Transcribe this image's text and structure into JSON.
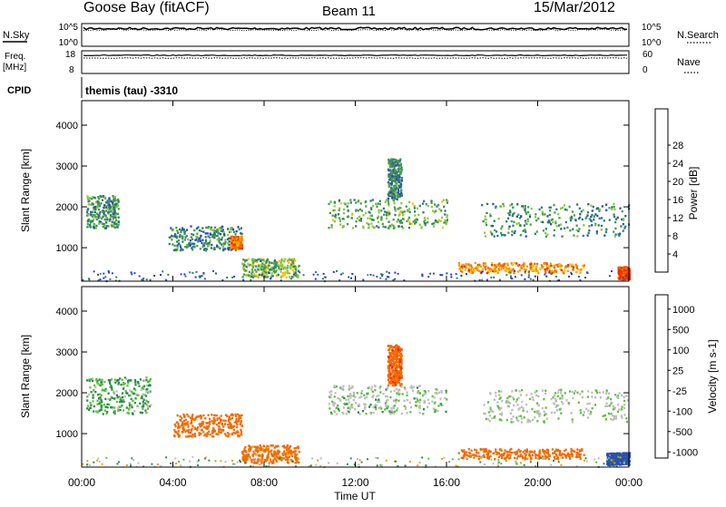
{
  "header": {
    "station": "Goose Bay (fitACF)",
    "beam": "Beam 11",
    "date": "15/Mar/2012"
  },
  "noise_panel": {
    "left_label": "N.Sky",
    "right_label": "N.Search",
    "tick_top": "10^5",
    "tick_bottom": "10^0",
    "sky_level": 0.78,
    "search_level": 0.72
  },
  "freq_panel": {
    "left_label_1": "Freq.",
    "left_label_2": "[MHz]",
    "right_label": "Nave",
    "left_ticks": [
      "18",
      "8"
    ],
    "right_ticks": [
      "60",
      "0"
    ],
    "freq_level": 0.8,
    "nave_level": 0.68
  },
  "cpid": {
    "label": "CPID",
    "text": "themis (tau) -3310"
  },
  "chart_data": [
    {
      "type": "heatmap",
      "name": "power",
      "ylabel": "Slant Range [km]",
      "xlabel": "Time UT",
      "x_range": [
        0,
        24
      ],
      "ylim": [
        180,
        4600
      ],
      "yticks": [
        1000,
        2000,
        3000,
        4000
      ],
      "xtick_labels": [
        "00:00",
        "04:00",
        "08:00",
        "12:00",
        "16:00",
        "20:00",
        "00:00"
      ],
      "colorbar": {
        "label": "Power [dB]",
        "ticks": [
          "4",
          "8",
          "12",
          "16",
          "20",
          "24",
          "28"
        ],
        "colors": [
          "#1530ff",
          "#2a4fb0",
          "#2e7d6e",
          "#4a9a50",
          "#8ac840",
          "#f5c400",
          "#f59a00",
          "#f26b00",
          "#ee2a00"
        ]
      },
      "regions": [
        {
          "t0": 0.2,
          "t1": 1.6,
          "r0": 1500,
          "r1": 2300,
          "v": 0.35
        },
        {
          "t0": 3.8,
          "t1": 7.0,
          "r0": 950,
          "r1": 1550,
          "v": 0.3
        },
        {
          "t0": 6.5,
          "t1": 7.0,
          "r0": 1000,
          "r1": 1300,
          "v": 0.8
        },
        {
          "t0": 7.0,
          "t1": 9.5,
          "r0": 300,
          "r1": 750,
          "v": 0.45
        },
        {
          "t0": 10.8,
          "t1": 16.0,
          "r0": 1500,
          "r1": 2200,
          "v": 0.4
        },
        {
          "t0": 13.4,
          "t1": 14.0,
          "r0": 2200,
          "r1": 3200,
          "v": 0.3
        },
        {
          "t0": 16.5,
          "t1": 22.0,
          "r0": 400,
          "r1": 650,
          "v": 0.75
        },
        {
          "t0": 17.5,
          "t1": 24.0,
          "r0": 1300,
          "r1": 2100,
          "v": 0.35
        },
        {
          "t0": 23.5,
          "t1": 24.0,
          "r0": 250,
          "r1": 550,
          "v": 0.95
        }
      ]
    },
    {
      "type": "heatmap",
      "name": "velocity",
      "ylabel": "Slant Range [km]",
      "xlabel": "Time UT",
      "x_range": [
        0,
        24
      ],
      "ylim": [
        180,
        4600
      ],
      "yticks": [
        1000,
        2000,
        3000,
        4000
      ],
      "xtick_labels": [
        "00:00",
        "04:00",
        "08:00",
        "12:00",
        "16:00",
        "20:00",
        "00:00"
      ],
      "colorbar": {
        "label": "Velocity [m s-1]",
        "ticks": [
          "1000",
          "500",
          "100",
          "25",
          "-25",
          "-100",
          "-500",
          "-1000"
        ],
        "colors": [
          "#1530c8",
          "#2a4fb0",
          "#2e8a4a",
          "#5fc040",
          "#bdbdbd",
          "#f59a00",
          "#f26b00",
          "#ee2a00"
        ]
      },
      "regions": [
        {
          "t0": 0.2,
          "t1": 3.0,
          "r0": 1500,
          "r1": 2400,
          "v": 25
        },
        {
          "t0": 4.0,
          "t1": 7.0,
          "r0": 950,
          "r1": 1500,
          "v": -200
        },
        {
          "t0": 7.0,
          "t1": 9.5,
          "r0": 300,
          "r1": 750,
          "v": -150
        },
        {
          "t0": 10.8,
          "t1": 16.0,
          "r0": 1500,
          "r1": 2200,
          "v": 10
        },
        {
          "t0": 13.4,
          "t1": 14.0,
          "r0": 2200,
          "r1": 3200,
          "v": -400
        },
        {
          "t0": 16.5,
          "t1": 22.0,
          "r0": 400,
          "r1": 650,
          "v": -300
        },
        {
          "t0": 17.5,
          "t1": 24.0,
          "r0": 1300,
          "r1": 2100,
          "v": 5
        },
        {
          "t0": 23.0,
          "t1": 24.0,
          "r0": 250,
          "r1": 550,
          "v": 150
        }
      ]
    }
  ]
}
